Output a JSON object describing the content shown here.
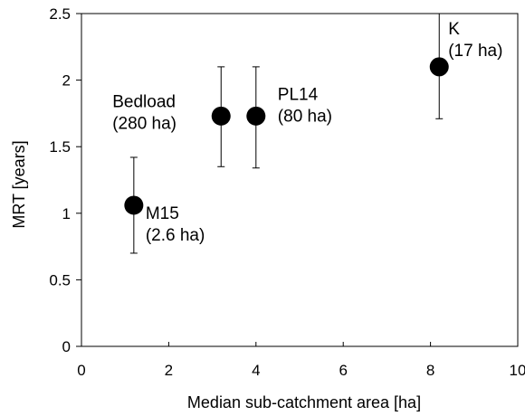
{
  "chart_data": {
    "type": "scatter",
    "title": "",
    "xlabel": "Median sub-catchment area [ha]",
    "ylabel": "MRT [years]",
    "xlim": [
      0,
      10
    ],
    "ylim": [
      0,
      2.5
    ],
    "xticks": [
      0,
      2,
      4,
      6,
      8,
      10
    ],
    "yticks": [
      0,
      0.5,
      1,
      1.5,
      2,
      2.5
    ],
    "xtick_labels": [
      "0",
      "2",
      "4",
      "6",
      "8",
      "10"
    ],
    "ytick_labels": [
      "0",
      "0.5",
      "1",
      "1.5",
      "2",
      "2.5"
    ],
    "grid": false,
    "legend": "none",
    "marker_color": "#000000",
    "points": [
      {
        "label": "M15",
        "sublabel": "(2.6 ha)",
        "x": 1.2,
        "y": 1.06,
        "ylow": 0.7,
        "yhigh": 1.42,
        "label_pos": "right-below"
      },
      {
        "label": "Bedload",
        "sublabel": "(280 ha)",
        "x": 3.2,
        "y": 1.73,
        "ylow": 1.35,
        "yhigh": 2.1,
        "label_pos": "left"
      },
      {
        "label": "PL14",
        "sublabel": "(80 ha)",
        "x": 4.0,
        "y": 1.73,
        "ylow": 1.34,
        "yhigh": 2.1,
        "label_pos": "right"
      },
      {
        "label": "K",
        "sublabel": "(17 ha)",
        "x": 8.2,
        "y": 2.1,
        "ylow": 1.71,
        "yhigh": 2.5,
        "label_pos": "right-above"
      }
    ]
  }
}
